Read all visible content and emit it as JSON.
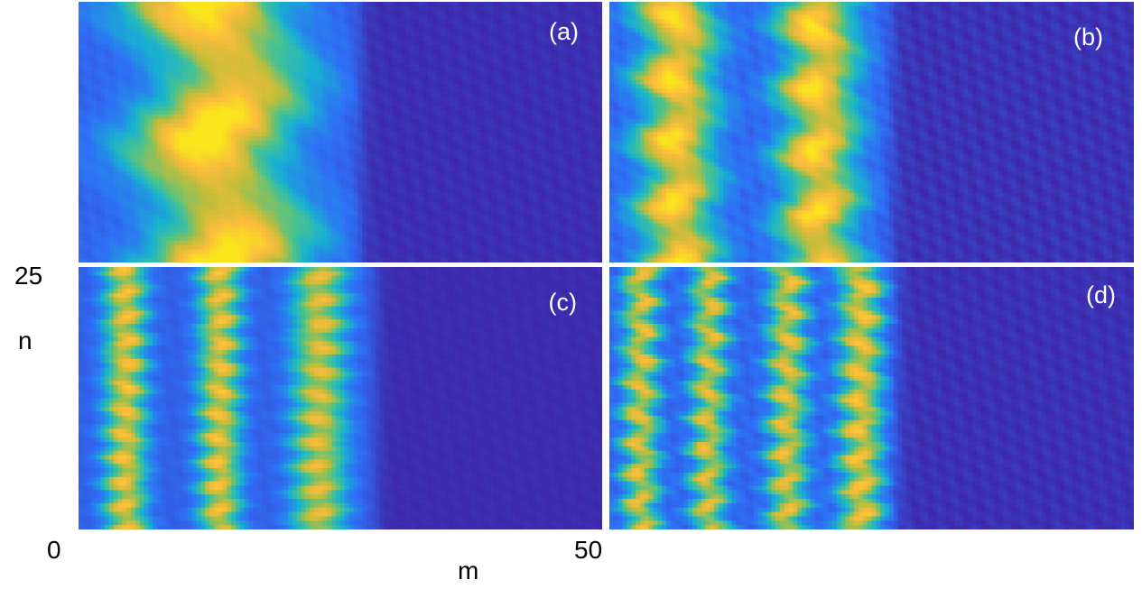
{
  "chart_data": {
    "type": "heatmap",
    "xlabel": "m",
    "ylabel": "n",
    "x_ticks": [
      "0",
      "50"
    ],
    "y_ticks": [
      "25"
    ],
    "xlim": [
      0,
      50
    ],
    "ylim": [
      0,
      25
    ],
    "colormap": [
      "#3e26a8",
      "#2f6ef6",
      "#18b1d1",
      "#4cc38a",
      "#c1bd3a",
      "#fbbc3d",
      "#f9e51c"
    ],
    "panels": [
      {
        "label": "(a)",
        "stripes": [
          {
            "center": 13.5,
            "width": 6.5,
            "amplitude": 0.92,
            "wiggle": 1.8,
            "period": 14
          }
        ],
        "front": 27,
        "background_texture": 0.08
      },
      {
        "label": "(b)",
        "stripes": [
          {
            "center": 6.5,
            "width": 3.2,
            "amplitude": 0.85,
            "wiggle": 0.8,
            "period": 6.5
          },
          {
            "center": 20,
            "width": 3.2,
            "amplitude": 0.85,
            "wiggle": 0.8,
            "period": 6.5
          }
        ],
        "front": 27,
        "background_texture": 0.12
      },
      {
        "label": "(c)",
        "stripes": [
          {
            "center": 4.5,
            "width": 1.8,
            "amplitude": 0.75,
            "wiggle": 0.4,
            "period": 2.5
          },
          {
            "center": 13.5,
            "width": 1.8,
            "amplitude": 0.75,
            "wiggle": 0.4,
            "period": 2.5
          },
          {
            "center": 23,
            "width": 2.3,
            "amplitude": 0.7,
            "wiggle": 0.4,
            "period": 2.5
          }
        ],
        "front": 28.5,
        "background_texture": 0.05
      },
      {
        "label": "(d)",
        "stripes": [
          {
            "center": 3,
            "width": 1.5,
            "amplitude": 0.7,
            "wiggle": 0.6,
            "period": 3
          },
          {
            "center": 9.5,
            "width": 1.5,
            "amplitude": 0.68,
            "wiggle": 0.6,
            "period": 3
          },
          {
            "center": 17,
            "width": 1.6,
            "amplitude": 0.7,
            "wiggle": 0.6,
            "period": 3
          },
          {
            "center": 24,
            "width": 1.8,
            "amplitude": 0.75,
            "wiggle": 0.6,
            "period": 3
          }
        ],
        "front": 27.5,
        "background_texture": 0.1
      }
    ]
  }
}
